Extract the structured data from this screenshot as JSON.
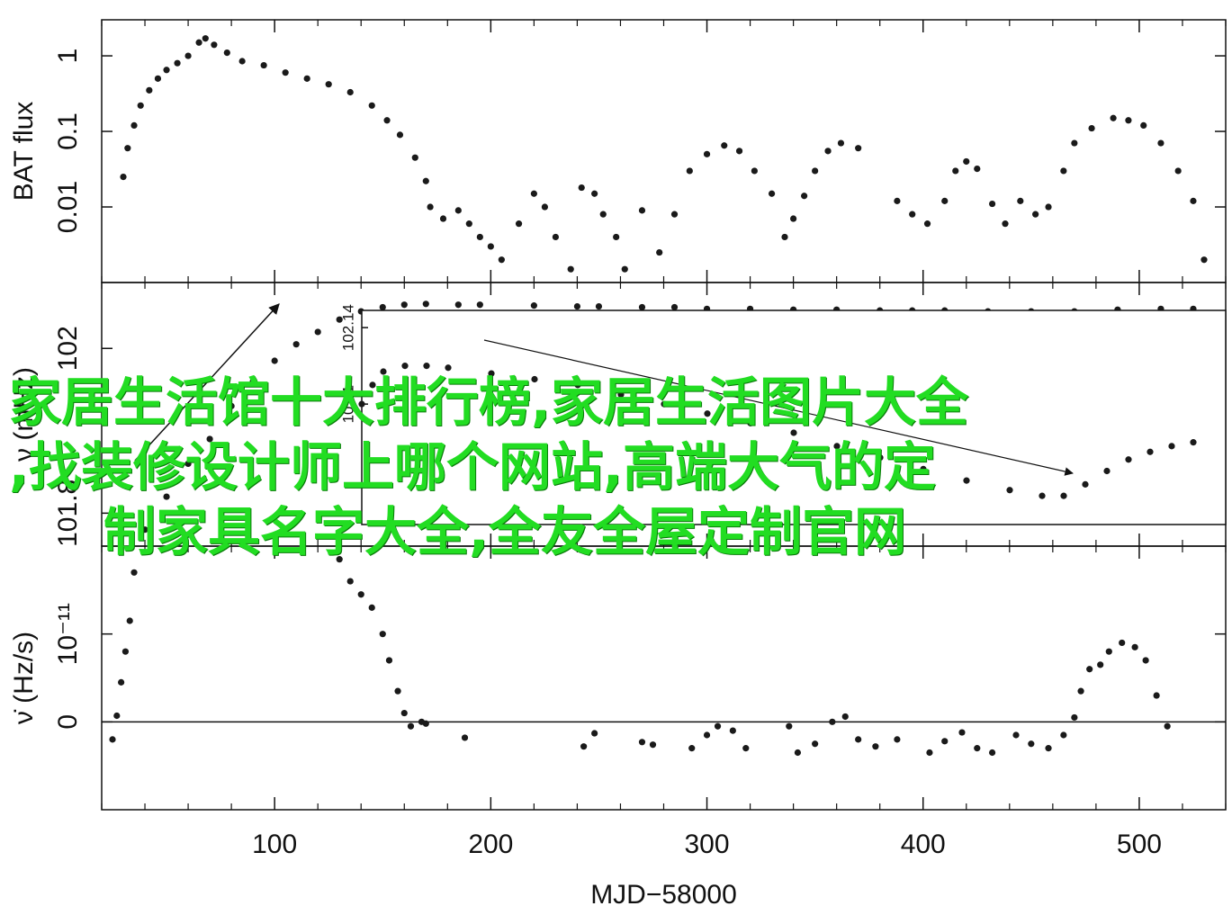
{
  "chart_data": [
    {
      "type": "scatter",
      "y_label": "BAT flux",
      "log_y": true,
      "color": "#1a1a1a",
      "xlim": [
        20,
        540
      ],
      "xticks": [
        100,
        200,
        300,
        400,
        500
      ],
      "xminorticks": [
        20,
        40,
        60,
        80,
        120,
        140,
        160,
        180,
        220,
        240,
        260,
        280,
        320,
        340,
        360,
        380,
        420,
        440,
        460,
        480,
        520,
        540
      ],
      "ylim": [
        0.001,
        3
      ],
      "yticks": [
        0.01,
        0.1,
        1
      ],
      "x": [
        30,
        32,
        35,
        38,
        42,
        46,
        50,
        55,
        60,
        65,
        68,
        72,
        78,
        85,
        95,
        105,
        115,
        125,
        135,
        145,
        152,
        158,
        165,
        170,
        172,
        178,
        185,
        190,
        195,
        200,
        205,
        213,
        220,
        225,
        230,
        237,
        242,
        248,
        252,
        258,
        262,
        270,
        278,
        285,
        292,
        300,
        308,
        315,
        322,
        330,
        336,
        340,
        345,
        350,
        356,
        362,
        370,
        388,
        395,
        402,
        410,
        415,
        420,
        425,
        432,
        438,
        445,
        452,
        458,
        465,
        470,
        478,
        488,
        495,
        502,
        510,
        518,
        525,
        530
      ],
      "y": [
        0.025,
        0.06,
        0.12,
        0.22,
        0.35,
        0.5,
        0.65,
        0.8,
        1.0,
        1.5,
        1.7,
        1.4,
        1.1,
        0.85,
        0.75,
        0.6,
        0.5,
        0.42,
        0.33,
        0.22,
        0.14,
        0.09,
        0.045,
        0.022,
        0.01,
        0.007,
        0.009,
        0.006,
        0.004,
        0.003,
        0.002,
        0.006,
        0.015,
        0.01,
        0.004,
        0.0015,
        0.018,
        0.015,
        0.008,
        0.004,
        0.0015,
        0.009,
        0.0025,
        0.008,
        0.03,
        0.05,
        0.065,
        0.055,
        0.03,
        0.015,
        0.004,
        0.007,
        0.014,
        0.03,
        0.055,
        0.07,
        0.06,
        0.012,
        0.008,
        0.006,
        0.012,
        0.03,
        0.04,
        0.032,
        0.011,
        0.006,
        0.012,
        0.008,
        0.01,
        0.03,
        0.07,
        0.11,
        0.15,
        0.14,
        0.12,
        0.07,
        0.03,
        0.012,
        0.002
      ]
    },
    {
      "type": "scatter",
      "y_label": "ν (mHz)",
      "color": "#1a1a1a",
      "xlim": [
        20,
        540
      ],
      "xticks": [
        100,
        200,
        300,
        400,
        500
      ],
      "xminorticks": [
        20,
        40,
        60,
        80,
        120,
        140,
        160,
        180,
        220,
        240,
        260,
        280,
        320,
        340,
        360,
        380,
        420,
        440,
        460,
        480,
        520,
        540
      ],
      "ylim": [
        101.76,
        102.08
      ],
      "yticks": [
        101.8,
        102
      ],
      "x": [
        40,
        50,
        60,
        70,
        80,
        90,
        100,
        110,
        120,
        130,
        140,
        150,
        160,
        170,
        185,
        195,
        220,
        240,
        250,
        270,
        285,
        300,
        320,
        340,
        360,
        380,
        395,
        410,
        430,
        450,
        470,
        490,
        510,
        525
      ],
      "y": [
        101.78,
        101.82,
        101.86,
        101.89,
        101.93,
        101.96,
        101.985,
        102.005,
        102.02,
        102.035,
        102.045,
        102.05,
        102.053,
        102.054,
        102.053,
        102.053,
        102.052,
        102.051,
        102.051,
        102.05,
        102.05,
        102.048,
        102.048,
        102.047,
        102.047,
        102.046,
        102.046,
        102.046,
        102.045,
        102.045,
        102.045,
        102.047,
        102.048,
        102.048
      ]
    },
    {
      "type": "scatter",
      "inset": true,
      "color": "#1a1a1a",
      "xlim": [
        140,
        540
      ],
      "ylim": [
        102.037,
        102.149
      ],
      "yticks": [
        102.1,
        102.14
      ],
      "x": [
        140,
        145,
        150,
        160,
        170,
        180,
        200,
        220,
        240,
        260,
        280,
        300,
        320,
        340,
        360,
        380,
        400,
        420,
        440,
        455,
        465,
        475,
        485,
        495,
        505,
        515,
        525
      ],
      "y": [
        102.1,
        102.11,
        102.117,
        102.12,
        102.12,
        102.119,
        102.116,
        102.113,
        102.11,
        102.105,
        102.1,
        102.095,
        102.09,
        102.085,
        102.078,
        102.072,
        102.066,
        102.06,
        102.055,
        102.052,
        102.052,
        102.058,
        102.065,
        102.071,
        102.075,
        102.078,
        102.08
      ]
    },
    {
      "type": "scatter",
      "y_label": "ν̇ (Hz/s)",
      "x_label": "MJD−58000",
      "zero_line": true,
      "color": "#1a1a1a",
      "xlim": [
        20,
        540
      ],
      "xticks": [
        100,
        200,
        300,
        400,
        500
      ],
      "xminorticks": [
        20,
        40,
        60,
        80,
        120,
        140,
        160,
        180,
        220,
        240,
        260,
        280,
        320,
        340,
        360,
        380,
        420,
        440,
        460,
        480,
        520,
        540
      ],
      "ylim": [
        -1e-11,
        2e-11
      ],
      "yticks": [
        0,
        {
          "value": 1e-11,
          "label": "10⁻¹¹"
        }
      ],
      "x": [
        25,
        27,
        29,
        31,
        33,
        35,
        130,
        135,
        140,
        145,
        150,
        153,
        157,
        160,
        163,
        168,
        170,
        188,
        243,
        248,
        270,
        275,
        293,
        300,
        305,
        312,
        318,
        338,
        342,
        350,
        358,
        364,
        370,
        378,
        388,
        403,
        410,
        418,
        425,
        432,
        443,
        450,
        458,
        465,
        470,
        473,
        477,
        482,
        486,
        492,
        498,
        503,
        508,
        513
      ],
      "y": [
        -2e-12,
        7e-13,
        4.5e-12,
        8e-12,
        1.15e-11,
        1.7e-11,
        1.85e-11,
        1.6e-11,
        1.45e-11,
        1.3e-11,
        1e-11,
        7e-12,
        3.5e-12,
        1e-12,
        -5e-13,
        0,
        -2e-13,
        -1.8e-12,
        -2.8e-12,
        -1.3e-12,
        -2.3e-12,
        -2.6e-12,
        -3e-12,
        -1.5e-12,
        -5e-13,
        -1e-12,
        -3e-12,
        -5e-13,
        -3.5e-12,
        -2.5e-12,
        0,
        6e-13,
        -2e-12,
        -2.8e-12,
        -2e-12,
        -3.5e-12,
        -2.2e-12,
        -1.2e-12,
        -3e-12,
        -3.5e-12,
        -1.5e-12,
        -2.5e-12,
        -3e-12,
        -1.5e-12,
        5e-13,
        3.5e-12,
        6e-12,
        6.5e-12,
        8e-12,
        9e-12,
        8.5e-12,
        7e-12,
        3e-12,
        -5e-13
      ]
    }
  ],
  "watermark": [
    "家居生活馆十大排行榜,家居生活图片大全",
    ",找装修设计师上哪个网站,高端大气的定",
    "制家具名字大全,全友全屋定制官网"
  ]
}
